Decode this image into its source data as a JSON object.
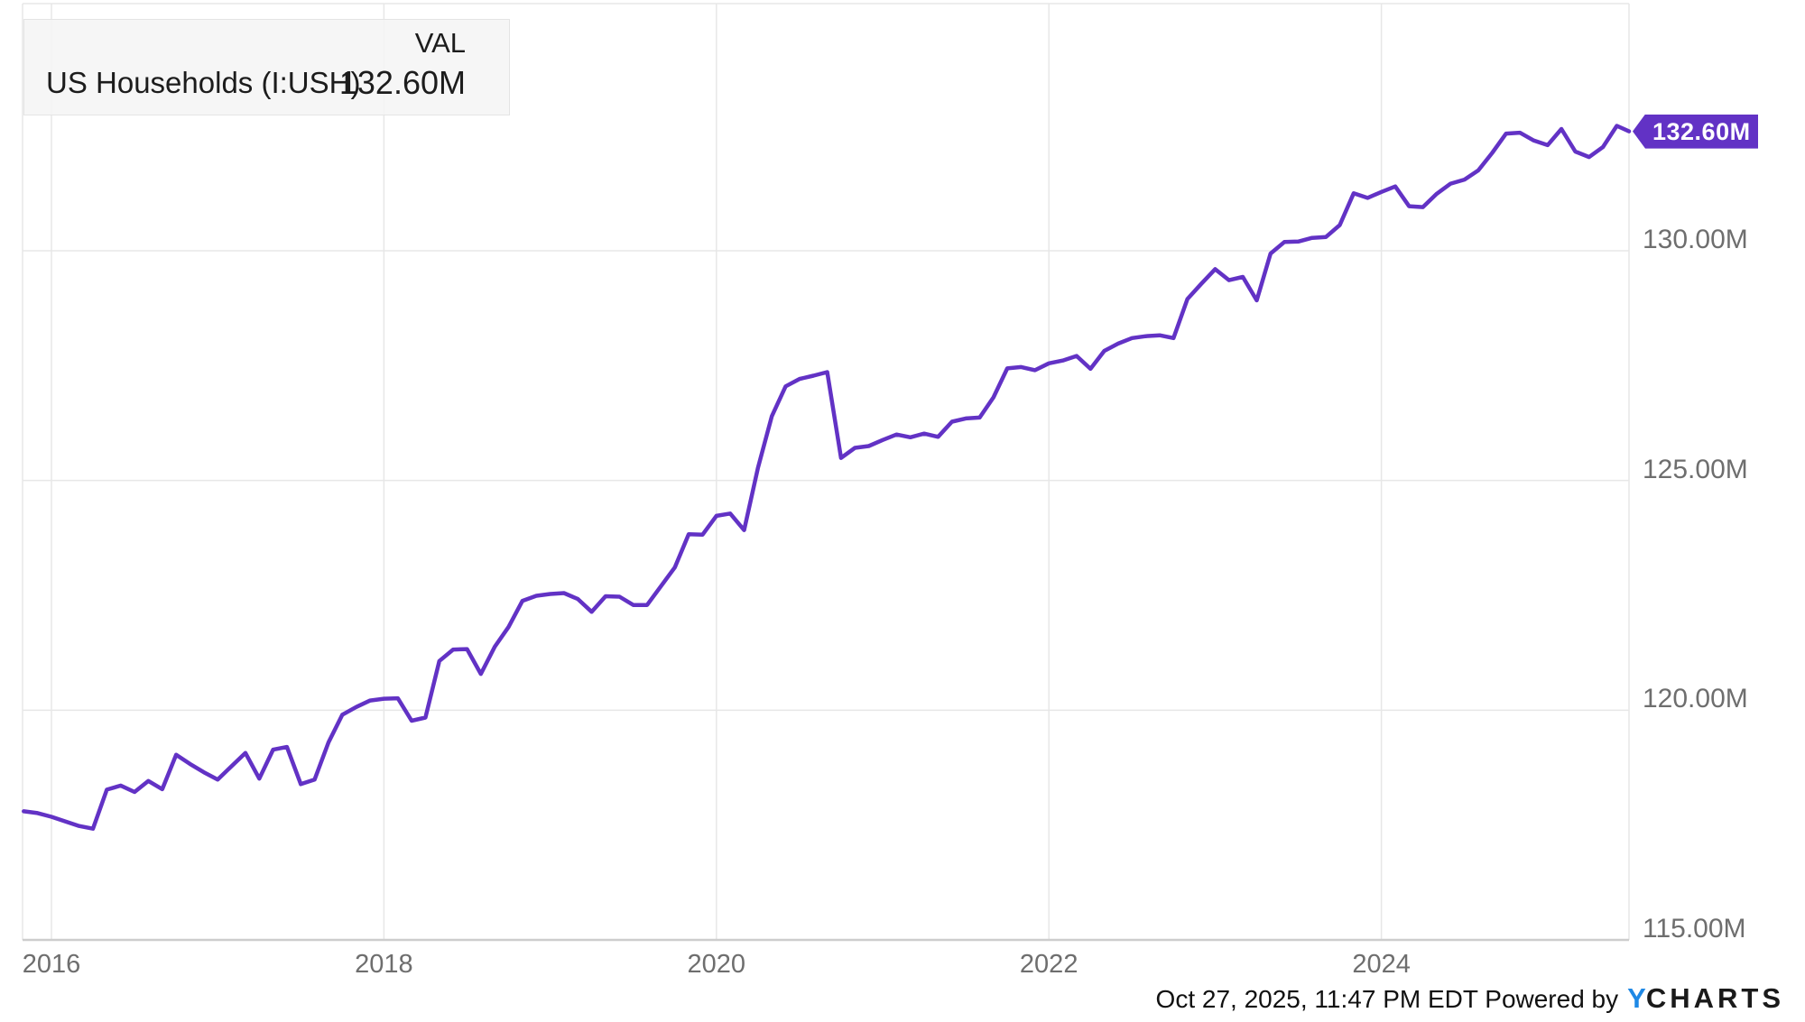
{
  "legend": {
    "series_label": "US Households (I:USH)",
    "val_header": "VAL",
    "value": "132.60M"
  },
  "value_tag": {
    "text": "132.60M"
  },
  "footer": {
    "timestamp": "Oct 27, 2025, 11:47 PM EDT",
    "powered_by": "Powered by",
    "logo_y": "Y",
    "logo_rest": "CHARTS"
  },
  "colors": {
    "line": "#6232c5",
    "tag_background": "#6232c5",
    "gridline": "#e7e7e7",
    "plot_border": "#e7e7e7",
    "axis_line": "#cdcdcd",
    "axis_label": "#6e6e6e",
    "logo_blue": "#1e88e5"
  },
  "chart_data": {
    "type": "line",
    "title": "US Households (I:USH)",
    "xlabel": "",
    "ylabel": "",
    "legend_position": "top-left",
    "grid": true,
    "x_tick_years": [
      2016,
      2018,
      2020,
      2022,
      2024
    ],
    "y_ticks": [
      {
        "value": 115,
        "label": "115.00M"
      },
      {
        "value": 120,
        "label": "120.00M"
      },
      {
        "value": 125,
        "label": "125.00M"
      },
      {
        "value": 130,
        "label": "130.00M"
      }
    ],
    "y_gridlines": [
      120,
      125,
      130
    ],
    "ylim": [
      115,
      135.1
    ],
    "xlim_years": [
      2015.82,
      2025.58
    ],
    "x_monthly_start": "2015-11",
    "unit": "millions of households",
    "last_value_label": "132.60M",
    "values": [
      117.8,
      117.76,
      117.68,
      117.58,
      117.48,
      117.42,
      118.27,
      118.36,
      118.22,
      118.46,
      118.28,
      119.03,
      118.83,
      118.65,
      118.49,
      118.78,
      119.07,
      118.51,
      119.14,
      119.2,
      118.39,
      118.49,
      119.3,
      119.9,
      120.07,
      120.21,
      120.25,
      120.26,
      119.77,
      119.84,
      121.07,
      121.32,
      121.33,
      120.79,
      121.38,
      121.81,
      122.38,
      122.49,
      122.53,
      122.55,
      122.42,
      122.14,
      122.48,
      122.47,
      122.29,
      122.29,
      122.7,
      123.11,
      123.83,
      123.82,
      124.23,
      124.28,
      123.92,
      125.28,
      126.4,
      127.05,
      127.21,
      127.28,
      127.36,
      125.49,
      125.71,
      125.75,
      125.88,
      126.0,
      125.94,
      126.02,
      125.95,
      126.28,
      126.35,
      126.37,
      126.81,
      127.44,
      127.47,
      127.4,
      127.55,
      127.61,
      127.71,
      127.43,
      127.82,
      127.98,
      128.1,
      128.14,
      128.16,
      128.1,
      128.95,
      129.28,
      129.6,
      129.36,
      129.43,
      128.92,
      129.94,
      130.19,
      130.2,
      130.28,
      130.3,
      130.56,
      131.25,
      131.15,
      131.28,
      131.4,
      130.97,
      130.95,
      131.24,
      131.46,
      131.55,
      131.75,
      132.13,
      132.55,
      132.57,
      132.4,
      132.3,
      132.65,
      132.16,
      132.04,
      132.26,
      132.72,
      132.6
    ]
  }
}
